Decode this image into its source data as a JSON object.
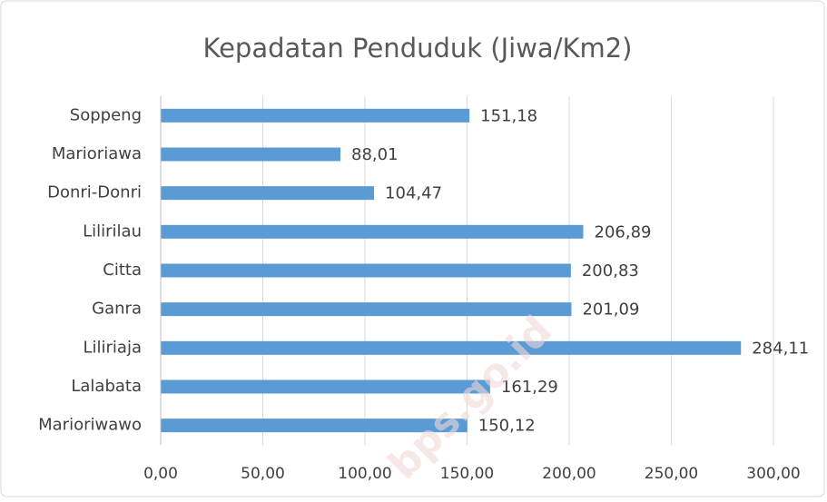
{
  "chart_data": {
    "type": "bar",
    "orientation": "horizontal",
    "title": "Kepadatan Penduduk (Jiwa/Km2)",
    "categories": [
      "Soppeng",
      "Marioriawa",
      "Donri-Donri",
      "Lilirilau",
      "Citta",
      "Ganra",
      "Liliriaja",
      "Lalabata",
      "Marioriwawo"
    ],
    "values": [
      151.18,
      88.01,
      104.47,
      206.89,
      200.83,
      201.09,
      284.11,
      161.29,
      150.12
    ],
    "value_labels": [
      "151,18",
      "88,01",
      "104,47",
      "206,89",
      "200,83",
      "201,09",
      "284,11",
      "161,29",
      "150,12"
    ],
    "color": "#5b9bd5",
    "xlim": [
      0,
      300
    ],
    "xticks": [
      {
        "value": 0,
        "label": "0,00"
      },
      {
        "value": 50,
        "label": "50,00"
      },
      {
        "value": 100,
        "label": "100,00"
      },
      {
        "value": 150,
        "label": "150,00"
      },
      {
        "value": 200,
        "label": "200,00"
      },
      {
        "value": 250,
        "label": "250,00"
      },
      {
        "value": 300,
        "label": "300,00"
      }
    ],
    "grid": true,
    "watermark": "bps.go.id"
  }
}
